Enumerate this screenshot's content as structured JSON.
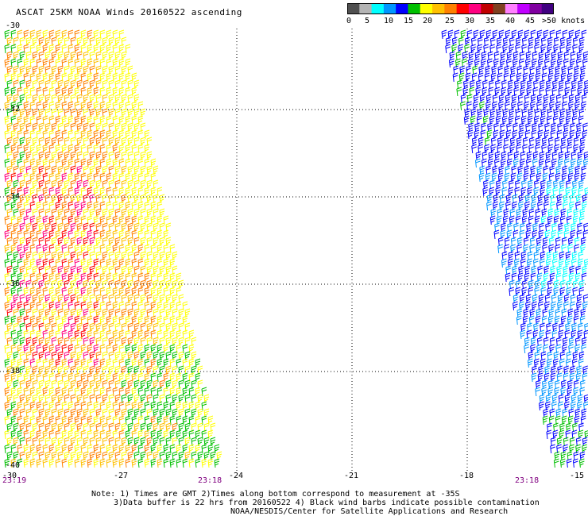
{
  "title": "ASCAT 25KM NOAA Winds 20160522 ascending",
  "colorbar": {
    "colors": [
      "#505050",
      "#b4b4b4",
      "#00ffff",
      "#0096ff",
      "#0000ff",
      "#00c000",
      "#ffff00",
      "#ffc000",
      "#ff8000",
      "#ff0000",
      "#ff0080",
      "#c00000",
      "#804020",
      "#ff80ff",
      "#c000ff",
      "#8000a0",
      "#400080"
    ],
    "labels": [
      "0",
      "5",
      "10",
      "15",
      "20",
      "25",
      "30",
      "35",
      "40",
      "45",
      ">50 knots"
    ]
  },
  "axes": {
    "x_ticks": [
      "-30",
      "-27",
      "-24",
      "-21",
      "-18",
      "-15"
    ],
    "y_ticks": [
      "-30",
      "-32",
      "-34",
      "-36",
      "-38",
      "-40"
    ]
  },
  "times": {
    "left_bottom": "23:19",
    "mid": "23:18",
    "right": "23:18"
  },
  "notes": {
    "line1": "Note: 1) Times are GMT 2)Times along bottom correspond to measurement at -35S",
    "line2": "3)Data buffer is 22 hrs from 20160522 4) Black wind barbs indicate possible contamination",
    "line3": "NOAA/NESDIS/Center for Satellite Applications and Research"
  },
  "wind_colors": {
    "west_swath": [
      "#ffff00",
      "#ffc000",
      "#ff8000",
      "#ff0000",
      "#ff0080",
      "#00c000"
    ],
    "east_swath": [
      "#0000ff",
      "#0096ff",
      "#00ffff",
      "#00c000"
    ]
  }
}
